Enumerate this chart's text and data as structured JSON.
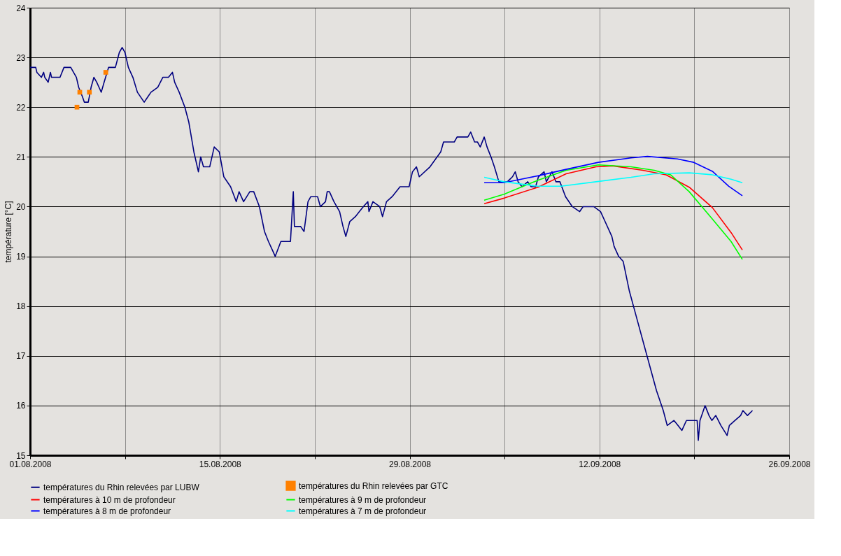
{
  "chart_data": {
    "type": "line",
    "ylabel": "température [°C]",
    "xlim": [
      "2008-08-01",
      "2008-09-26"
    ],
    "xticks": [
      {
        "value": "2008-08-01",
        "label": "01.08.2008"
      },
      {
        "value": "2008-08-08",
        "label": null
      },
      {
        "value": "2008-08-15",
        "label": "15.08.2008"
      },
      {
        "value": "2008-08-22",
        "label": null
      },
      {
        "value": "2008-08-29",
        "label": "29.08.2008"
      },
      {
        "value": "2008-09-05",
        "label": null
      },
      {
        "value": "2008-09-12",
        "label": "12.09.2008"
      },
      {
        "value": "2008-09-19",
        "label": null
      },
      {
        "value": "2008-09-26",
        "label": "26.09.2008"
      }
    ],
    "ylim": [
      15,
      24
    ],
    "yticks": [
      15,
      16,
      17,
      18,
      19,
      20,
      21,
      22,
      23,
      24
    ],
    "grid": true,
    "legend": "bottom",
    "line_style": "solid",
    "series": [
      {
        "name": "températures du Rhin relevées par LUBW",
        "color": "#000080",
        "marker": "none",
        "x": [
          "2008-08-01T00:00",
          "2008-08-01T10:00",
          "2008-08-01T12:00",
          "2008-08-01T20:00",
          "2008-08-02T00:00",
          "2008-08-02T02:00",
          "2008-08-02T08:00",
          "2008-08-02T12:00",
          "2008-08-02T14:00",
          "2008-08-03T05:00",
          "2008-08-03T12:00",
          "2008-08-04T00:00",
          "2008-08-04T10:00",
          "2008-08-04T14:00",
          "2008-08-04T21:00",
          "2008-08-05T00:00",
          "2008-08-05T07:00",
          "2008-08-05T12:00",
          "2008-08-05T17:00",
          "2008-08-05T22:00",
          "2008-08-06T02:00",
          "2008-08-06T06:00",
          "2008-08-06T11:00",
          "2008-08-06T19:00",
          "2008-08-07T07:00",
          "2008-08-07T14:00",
          "2008-08-07T19:00",
          "2008-08-08T00:00",
          "2008-08-08T06:00",
          "2008-08-08T14:00",
          "2008-08-08T22:00",
          "2008-08-09T10:00",
          "2008-08-09T16:00",
          "2008-08-09T22:00",
          "2008-08-10T10:00",
          "2008-08-10T19:00",
          "2008-08-11T05:00",
          "2008-08-11T12:00",
          "2008-08-11T16:00",
          "2008-08-12T00:00",
          "2008-08-12T10:00",
          "2008-08-12T17:00",
          "2008-08-13T02:00",
          "2008-08-13T10:00",
          "2008-08-13T14:00",
          "2008-08-13T19:00",
          "2008-08-14T06:00",
          "2008-08-14T14:00",
          "2008-08-14T23:00",
          "2008-08-15T07:00",
          "2008-08-15T19:00",
          "2008-08-16T05:00",
          "2008-08-16T10:00",
          "2008-08-16T18:00",
          "2008-08-17T05:00",
          "2008-08-17T12:00",
          "2008-08-17T22:00",
          "2008-08-18T07:00",
          "2008-08-18T14:00",
          "2008-08-18T22:00",
          "2008-08-19T02:00",
          "2008-08-19T12:00",
          "2008-08-20T05:00",
          "2008-08-20T10:00",
          "2008-08-20T12:00",
          "2008-08-20T23:00",
          "2008-08-21T05:00",
          "2008-08-21T12:00",
          "2008-08-21T17:00",
          "2008-08-22T05:00",
          "2008-08-22T10:00",
          "2008-08-22T19:00",
          "2008-08-22T22:00",
          "2008-08-23T02:00",
          "2008-08-23T10:00",
          "2008-08-23T20:00",
          "2008-08-24T02:00",
          "2008-08-24T07:00",
          "2008-08-24T14:00",
          "2008-08-25T00:00",
          "2008-08-25T07:00",
          "2008-08-25T14:00",
          "2008-08-25T22:00",
          "2008-08-26T00:00",
          "2008-08-26T07:00",
          "2008-08-26T19:00",
          "2008-08-27T00:00",
          "2008-08-27T07:00",
          "2008-08-27T17:00",
          "2008-08-28T07:00",
          "2008-08-28T23:00",
          "2008-08-29T05:00",
          "2008-08-29T12:00",
          "2008-08-29T17:00",
          "2008-08-30T12:00",
          "2008-08-31T07:00",
          "2008-08-31T12:00",
          "2008-09-01T07:00",
          "2008-09-01T12:00",
          "2008-09-02T07:00",
          "2008-09-02T12:00",
          "2008-09-02T19:00",
          "2008-09-03T00:00",
          "2008-09-03T05:00",
          "2008-09-03T12:00",
          "2008-09-03T17:00",
          "2008-09-04T00:00",
          "2008-09-04T06:00",
          "2008-09-04T14:00",
          "2008-09-05T05:00",
          "2008-09-05T14:00",
          "2008-09-05T19:00",
          "2008-09-06T00:00",
          "2008-09-06T07:00",
          "2008-09-06T17:00",
          "2008-09-06T23:00",
          "2008-09-07T07:00",
          "2008-09-07T12:00",
          "2008-09-07T22:00",
          "2008-09-08T02:00",
          "2008-09-08T12:00",
          "2008-09-08T19:00",
          "2008-09-09T02:00",
          "2008-09-09T12:00",
          "2008-09-10T00:00",
          "2008-09-10T13:00",
          "2008-09-10T19:00",
          "2008-09-11T14:00",
          "2008-09-12T02:00",
          "2008-09-12T10:00",
          "2008-09-12T22:00",
          "2008-09-13T02:00",
          "2008-09-13T10:00",
          "2008-09-13T18:00",
          "2008-09-14T05:00",
          "2008-09-14T17:00",
          "2008-09-15T05:00",
          "2008-09-15T17:00",
          "2008-09-16T05:00",
          "2008-09-16T17:00",
          "2008-09-17T00:00",
          "2008-09-17T12:00",
          "2008-09-17T19:00",
          "2008-09-18T02:00",
          "2008-09-18T10:00",
          "2008-09-18T19:00",
          "2008-09-19T05:00",
          "2008-09-19T07:00",
          "2008-09-19T10:00",
          "2008-09-19T19:00",
          "2008-09-20T02:00",
          "2008-09-20T07:00",
          "2008-09-20T14:00",
          "2008-09-20T23:00",
          "2008-09-21T10:00",
          "2008-09-21T14:00",
          "2008-09-22T00:00",
          "2008-09-22T10:00",
          "2008-09-22T14:00",
          "2008-09-22T22:00",
          "2008-09-23T07:00"
        ],
        "values": [
          22.8,
          22.8,
          22.7,
          22.6,
          22.7,
          22.6,
          22.5,
          22.7,
          22.6,
          22.6,
          22.8,
          22.8,
          22.6,
          22.4,
          22.2,
          22.1,
          22.1,
          22.4,
          22.6,
          22.5,
          22.4,
          22.3,
          22.5,
          22.8,
          22.8,
          23.1,
          23.2,
          23.1,
          22.8,
          22.6,
          22.3,
          22.1,
          22.2,
          22.3,
          22.4,
          22.6,
          22.6,
          22.7,
          22.5,
          22.3,
          22.0,
          21.7,
          21.1,
          20.7,
          21.0,
          20.8,
          20.8,
          21.2,
          21.1,
          20.6,
          20.4,
          20.1,
          20.3,
          20.1,
          20.3,
          20.3,
          20.0,
          19.5,
          19.3,
          19.1,
          19.0,
          19.3,
          19.3,
          20.3,
          19.6,
          19.6,
          19.5,
          20.1,
          20.2,
          20.2,
          20.0,
          20.1,
          20.3,
          20.3,
          20.1,
          19.9,
          19.6,
          19.4,
          19.7,
          19.8,
          19.9,
          20.0,
          20.1,
          19.9,
          20.1,
          20.0,
          19.8,
          20.1,
          20.2,
          20.4,
          20.4,
          20.7,
          20.8,
          20.6,
          20.8,
          21.1,
          21.3,
          21.3,
          21.4,
          21.4,
          21.5,
          21.3,
          21.3,
          21.2,
          21.4,
          21.2,
          21.0,
          20.8,
          20.5,
          20.5,
          20.6,
          20.7,
          20.5,
          20.4,
          20.5,
          20.4,
          20.4,
          20.6,
          20.7,
          20.5,
          20.7,
          20.5,
          20.5,
          20.2,
          20.0,
          19.9,
          20.0,
          20.0,
          19.9,
          19.7,
          19.4,
          19.2,
          19.0,
          18.9,
          18.3,
          17.8,
          17.3,
          16.8,
          16.3,
          15.9,
          15.6,
          15.7,
          15.6,
          15.5,
          15.7,
          15.7,
          15.7,
          15.3,
          15.7,
          16.0,
          15.8,
          15.7,
          15.8,
          15.6,
          15.4,
          15.6,
          15.7,
          15.8,
          15.9,
          15.8,
          15.9
        ]
      },
      {
        "name": "températures du Rhin relevées par GTC",
        "color": "#ff8000",
        "type": "scatter",
        "marker": "square",
        "x": [
          "2008-08-04T11:00",
          "2008-08-04T16:00",
          "2008-08-05T09:00",
          "2008-08-06T14:00"
        ],
        "values": [
          22.0,
          22.3,
          22.3,
          22.7
        ]
      },
      {
        "name": "températures à 10 m de profondeur",
        "color": "#ff0000",
        "marker": "none",
        "x": [
          "2008-09-03T12:00",
          "2008-09-04T23:00",
          "2008-09-07T11:00",
          "2008-09-09T13:00",
          "2008-09-11T18:00",
          "2008-09-12T23:00",
          "2008-09-15T05:00",
          "2008-09-16T22:00",
          "2008-09-18T15:00",
          "2008-09-20T08:00",
          "2008-09-21T17:00",
          "2008-09-22T13:00"
        ],
        "values": [
          20.06,
          20.17,
          20.39,
          20.66,
          20.8,
          20.82,
          20.73,
          20.64,
          20.39,
          19.98,
          19.48,
          19.13
        ]
      },
      {
        "name": "températures à 9 m de profondeur",
        "color": "#00ff00",
        "marker": "none",
        "x": [
          "2008-09-03T12:00",
          "2008-09-04T23:00",
          "2008-09-07T11:00",
          "2008-09-09T13:00",
          "2008-09-11T22:00",
          "2008-09-14T08:00",
          "2008-09-16T01:00",
          "2008-09-17T06:00",
          "2008-09-18T15:00",
          "2008-09-20T08:00",
          "2008-09-21T17:00",
          "2008-09-22T13:00"
        ],
        "values": [
          20.13,
          20.25,
          20.53,
          20.73,
          20.84,
          20.8,
          20.73,
          20.64,
          20.3,
          19.75,
          19.3,
          18.94
        ]
      },
      {
        "name": "températures à 8 m de profondeur",
        "color": "#0000ff",
        "marker": "none",
        "x": [
          "2008-09-03T12:00",
          "2008-09-04T23:00",
          "2008-09-07T11:00",
          "2008-09-09T13:00",
          "2008-09-11T22:00",
          "2008-09-14T08:00",
          "2008-09-15T13:00",
          "2008-09-17T18:00",
          "2008-09-18T23:00",
          "2008-09-20T08:00",
          "2008-09-21T13:00",
          "2008-09-22T13:00"
        ],
        "values": [
          20.48,
          20.48,
          20.62,
          20.75,
          20.89,
          20.98,
          21.01,
          20.96,
          20.89,
          20.71,
          20.41,
          20.22
        ]
      },
      {
        "name": "températures à 7 m de profondeur",
        "color": "#00ffff",
        "marker": "none",
        "x": [
          "2008-09-03T12:00",
          "2008-09-04T23:00",
          "2008-09-07T11:00",
          "2008-09-09T04:00",
          "2008-09-11T18:00",
          "2008-09-14T08:00",
          "2008-09-16T01:00",
          "2008-09-18T15:00",
          "2008-09-20T08:00",
          "2008-09-21T17:00",
          "2008-09-22T13:00"
        ],
        "values": [
          20.59,
          20.5,
          20.41,
          20.41,
          20.5,
          20.59,
          20.66,
          20.68,
          20.64,
          20.55,
          20.48
        ]
      }
    ]
  }
}
